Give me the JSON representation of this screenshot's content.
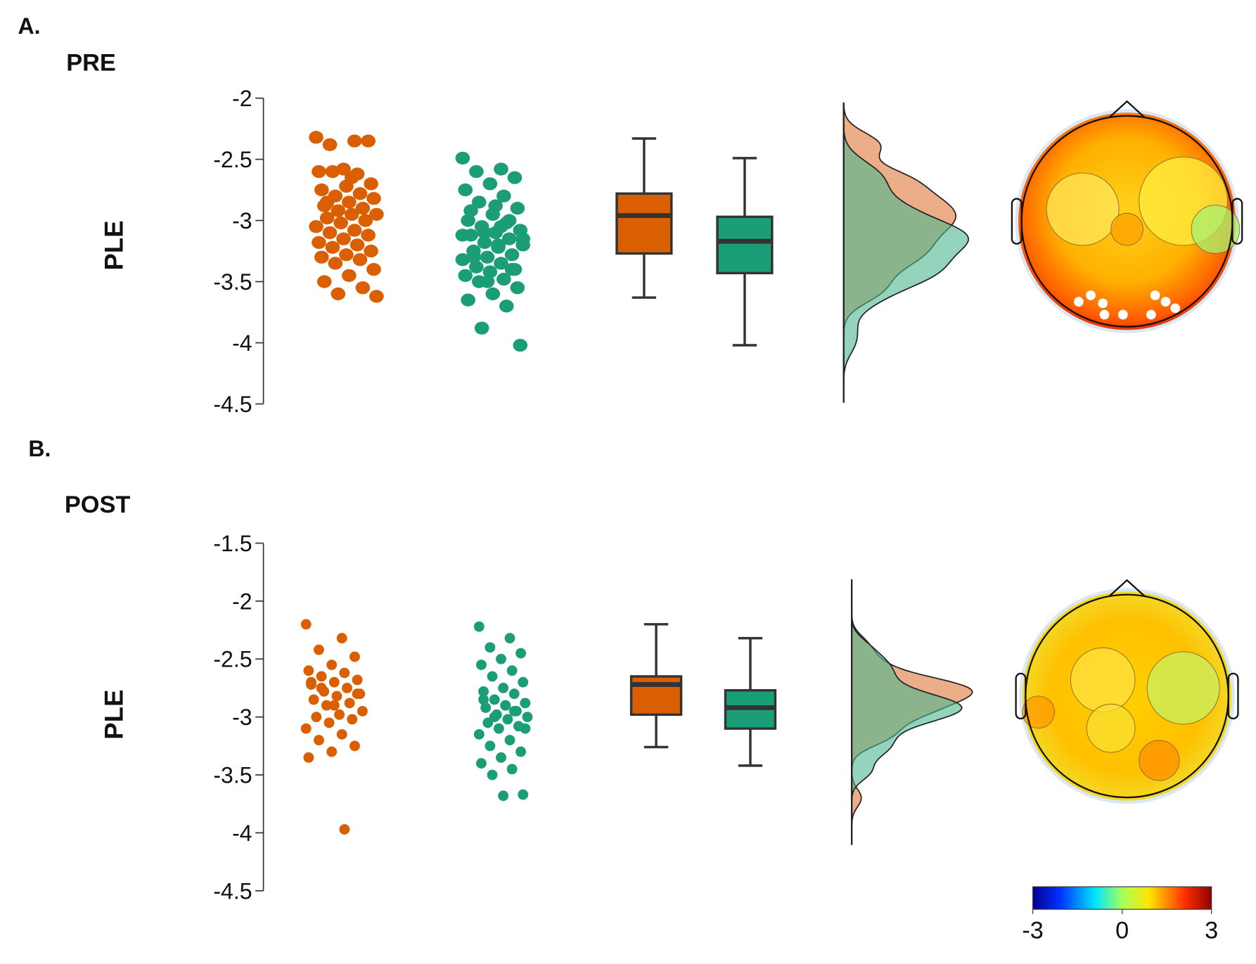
{
  "chart_data": [
    {
      "type": "raincloud",
      "panel": "A.",
      "title": "PRE",
      "ylabel": "PLE",
      "ylim": [
        -4.5,
        -2
      ],
      "yticks": [
        -2,
        -2.5,
        -3,
        -3.5,
        -4,
        -4.5
      ],
      "series": [
        {
          "color": "#d95f02",
          "values": [
            -2.32,
            -2.35,
            -2.38,
            -2.35,
            -2.58,
            -2.6,
            -2.62,
            -2.6,
            -2.7,
            -2.72,
            -2.75,
            -2.78,
            -2.8,
            -2.82,
            -2.85,
            -2.88,
            -2.9,
            -2.92,
            -2.95,
            -2.95,
            -2.98,
            -3.0,
            -3.02,
            -3.05,
            -3.08,
            -3.1,
            -3.12,
            -3.15,
            -3.18,
            -3.2,
            -3.22,
            -3.25,
            -3.28,
            -3.3,
            -3.32,
            -3.35,
            -3.4,
            -3.45,
            -3.5,
            -3.55,
            -3.6,
            -3.62,
            -2.65,
            -2.85,
            -3.0
          ],
          "box": {
            "whislo": -3.63,
            "q1": -3.27,
            "med": -2.96,
            "q3": -2.78,
            "whishi": -2.33
          }
        },
        {
          "color": "#1b9e77",
          "values": [
            -2.49,
            -2.58,
            -2.6,
            -2.65,
            -2.7,
            -2.75,
            -2.8,
            -2.85,
            -2.9,
            -2.95,
            -3.0,
            -3.02,
            -3.05,
            -3.08,
            -3.1,
            -3.12,
            -3.15,
            -3.18,
            -3.2,
            -3.22,
            -3.25,
            -3.28,
            -3.3,
            -3.32,
            -3.35,
            -3.38,
            -3.4,
            -3.42,
            -3.45,
            -3.48,
            -3.5,
            -3.55,
            -3.6,
            -3.65,
            -3.7,
            -3.88,
            -4.02,
            -2.88,
            -2.92,
            -3.0,
            -3.1,
            -3.15,
            -3.2,
            -3.3,
            -3.4,
            -3.5,
            -3.12,
            -3.05
          ],
          "box": {
            "whislo": -4.02,
            "q1": -3.43,
            "med": -3.17,
            "q3": -2.97,
            "whishi": -2.49
          }
        }
      ]
    },
    {
      "type": "raincloud",
      "panel": "B.",
      "title": "POST",
      "ylabel": "PLE",
      "ylim": [
        -4.5,
        -1.5
      ],
      "yticks": [
        -1.5,
        -2,
        -2.5,
        -3,
        -3.5,
        -4,
        -4.5
      ],
      "series": [
        {
          "color": "#d95f02",
          "values": [
            -2.2,
            -2.32,
            -2.42,
            -2.48,
            -2.55,
            -2.6,
            -2.62,
            -2.65,
            -2.68,
            -2.7,
            -2.72,
            -2.75,
            -2.78,
            -2.8,
            -2.82,
            -2.85,
            -2.88,
            -2.9,
            -2.95,
            -2.98,
            -3.0,
            -3.02,
            -3.05,
            -3.1,
            -3.15,
            -3.2,
            -3.25,
            -3.3,
            -3.35,
            -3.97,
            -2.75,
            -2.8,
            -2.9,
            -2.7
          ],
          "box": {
            "whislo": -3.26,
            "q1": -2.98,
            "med": -2.72,
            "q3": -2.65,
            "whishi": -2.2
          }
        },
        {
          "color": "#1b9e77",
          "values": [
            -2.22,
            -2.32,
            -2.4,
            -2.45,
            -2.5,
            -2.55,
            -2.6,
            -2.65,
            -2.7,
            -2.75,
            -2.78,
            -2.8,
            -2.85,
            -2.88,
            -2.9,
            -2.92,
            -2.95,
            -2.98,
            -3.0,
            -3.02,
            -3.05,
            -3.08,
            -3.1,
            -3.15,
            -3.2,
            -3.25,
            -3.3,
            -3.35,
            -3.4,
            -3.45,
            -3.5,
            -3.67,
            -3.68,
            -2.85,
            -2.95,
            -3.0,
            -3.1,
            -2.9
          ],
          "box": {
            "whislo": -3.42,
            "q1": -3.1,
            "med": -2.92,
            "q3": -2.77,
            "whishi": -2.32
          }
        }
      ],
      "colorbar": {
        "lim": [
          -3,
          3
        ],
        "ticks": [
          -3,
          0,
          3
        ]
      }
    }
  ]
}
